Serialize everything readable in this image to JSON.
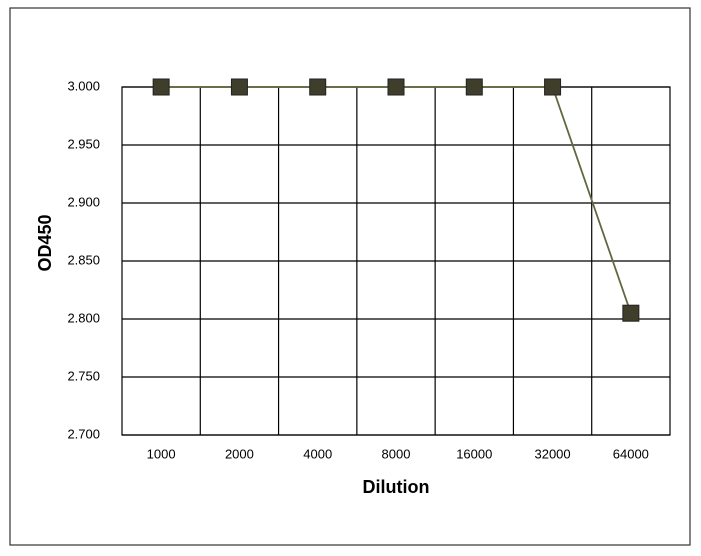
{
  "chart_data": {
    "type": "line",
    "x_label": "Dilution",
    "y_label": "OD450",
    "categories": [
      "1000",
      "2000",
      "4000",
      "8000",
      "16000",
      "32000",
      "64000"
    ],
    "series": [
      {
        "name": "OD450",
        "color": "#5e6b3f",
        "marker_color": "#3e3e2a",
        "values": [
          3.0,
          3.0,
          3.0,
          3.0,
          3.0,
          3.0,
          2.805
        ]
      }
    ],
    "ylim": [
      2.7,
      3.0
    ],
    "yticks": [
      {
        "value": 2.7,
        "label": "2.700"
      },
      {
        "value": 2.75,
        "label": "2.750"
      },
      {
        "value": 2.8,
        "label": "2.800"
      },
      {
        "value": 2.85,
        "label": "2.850"
      },
      {
        "value": 2.9,
        "label": "2.900"
      },
      {
        "value": 2.95,
        "label": "2.950"
      },
      {
        "value": 3.0,
        "label": "3.000"
      }
    ],
    "grid": true
  }
}
